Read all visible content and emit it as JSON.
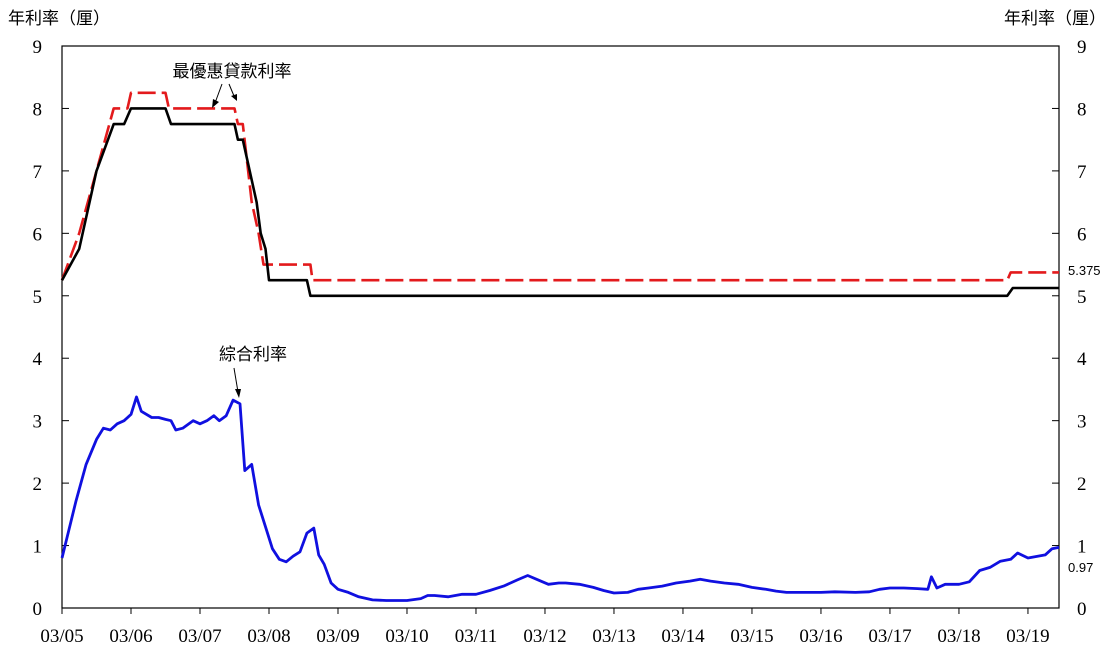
{
  "chart_data": {
    "type": "line",
    "y_unit_left": "年利率（厘）",
    "y_unit_right": "年利率（厘）",
    "ylim": [
      0,
      9
    ],
    "y_ticks": [
      "0",
      "1",
      "2",
      "3",
      "4",
      "5",
      "6",
      "7",
      "8",
      "9"
    ],
    "x_ticks": [
      "03/05",
      "03/06",
      "03/07",
      "03/08",
      "03/09",
      "03/10",
      "03/11",
      "03/12",
      "03/13",
      "03/14",
      "03/15",
      "03/16",
      "03/17",
      "03/18",
      "03/19"
    ],
    "grid": false,
    "annotations": {
      "prime": "最優惠貸款利率",
      "composite": "綜合利率"
    },
    "end_labels": {
      "prime_high": "5.375",
      "composite": "0.97"
    },
    "colors": {
      "prime_high": "#e31a1c",
      "prime_low": "#000000",
      "composite": "#1010e0"
    },
    "series": [
      {
        "key": "prime_high",
        "style": "dashed",
        "points": [
          [
            2005.0,
            5.25
          ],
          [
            2005.25,
            6.0
          ],
          [
            2005.5,
            7.0
          ],
          [
            2005.75,
            8.0
          ],
          [
            2005.95,
            8.0
          ],
          [
            2006.0,
            8.25
          ],
          [
            2006.5,
            8.25
          ],
          [
            2006.55,
            8.0
          ],
          [
            2007.0,
            8.0
          ],
          [
            2007.5,
            8.0
          ],
          [
            2007.55,
            7.75
          ],
          [
            2007.62,
            7.75
          ],
          [
            2007.75,
            6.5
          ],
          [
            2007.85,
            6.0
          ],
          [
            2007.92,
            5.5
          ],
          [
            2008.5,
            5.5
          ],
          [
            2008.6,
            5.5
          ],
          [
            2008.63,
            5.25
          ],
          [
            2018.7,
            5.25
          ],
          [
            2018.75,
            5.375
          ],
          [
            2019.45,
            5.375
          ]
        ]
      },
      {
        "key": "prime_low",
        "style": "solid",
        "points": [
          [
            2005.0,
            5.25
          ],
          [
            2005.25,
            5.75
          ],
          [
            2005.5,
            7.0
          ],
          [
            2005.75,
            7.75
          ],
          [
            2005.9,
            7.75
          ],
          [
            2006.0,
            8.0
          ],
          [
            2006.5,
            8.0
          ],
          [
            2006.58,
            7.75
          ],
          [
            2007.0,
            7.75
          ],
          [
            2007.5,
            7.75
          ],
          [
            2007.55,
            7.5
          ],
          [
            2007.62,
            7.5
          ],
          [
            2007.72,
            7.0
          ],
          [
            2007.82,
            6.5
          ],
          [
            2007.88,
            6.0
          ],
          [
            2007.95,
            5.75
          ],
          [
            2008.0,
            5.25
          ],
          [
            2008.55,
            5.25
          ],
          [
            2008.6,
            5.0
          ],
          [
            2018.7,
            5.0
          ],
          [
            2018.78,
            5.125
          ],
          [
            2019.45,
            5.125
          ]
        ]
      },
      {
        "key": "composite",
        "style": "solid",
        "points": [
          [
            2005.0,
            0.8
          ],
          [
            2005.1,
            1.25
          ],
          [
            2005.2,
            1.7
          ],
          [
            2005.35,
            2.3
          ],
          [
            2005.5,
            2.7
          ],
          [
            2005.6,
            2.88
          ],
          [
            2005.7,
            2.85
          ],
          [
            2005.8,
            2.95
          ],
          [
            2005.9,
            3.0
          ],
          [
            2006.0,
            3.1
          ],
          [
            2006.08,
            3.38
          ],
          [
            2006.15,
            3.15
          ],
          [
            2006.3,
            3.05
          ],
          [
            2006.4,
            3.05
          ],
          [
            2006.5,
            3.02
          ],
          [
            2006.58,
            3.0
          ],
          [
            2006.65,
            2.85
          ],
          [
            2006.75,
            2.88
          ],
          [
            2006.9,
            3.0
          ],
          [
            2007.0,
            2.95
          ],
          [
            2007.1,
            3.0
          ],
          [
            2007.2,
            3.08
          ],
          [
            2007.28,
            3.0
          ],
          [
            2007.38,
            3.08
          ],
          [
            2007.48,
            3.33
          ],
          [
            2007.58,
            3.27
          ],
          [
            2007.65,
            2.2
          ],
          [
            2007.75,
            2.3
          ],
          [
            2007.85,
            1.65
          ],
          [
            2007.95,
            1.3
          ],
          [
            2008.05,
            0.95
          ],
          [
            2008.15,
            0.78
          ],
          [
            2008.25,
            0.74
          ],
          [
            2008.35,
            0.83
          ],
          [
            2008.45,
            0.9
          ],
          [
            2008.55,
            1.2
          ],
          [
            2008.65,
            1.28
          ],
          [
            2008.72,
            0.85
          ],
          [
            2008.8,
            0.7
          ],
          [
            2008.9,
            0.4
          ],
          [
            2009.0,
            0.3
          ],
          [
            2009.15,
            0.25
          ],
          [
            2009.3,
            0.18
          ],
          [
            2009.5,
            0.13
          ],
          [
            2009.7,
            0.12
          ],
          [
            2010.0,
            0.12
          ],
          [
            2010.2,
            0.15
          ],
          [
            2010.3,
            0.2
          ],
          [
            2010.4,
            0.2
          ],
          [
            2010.6,
            0.18
          ],
          [
            2010.8,
            0.22
          ],
          [
            2011.0,
            0.22
          ],
          [
            2011.2,
            0.28
          ],
          [
            2011.4,
            0.35
          ],
          [
            2011.6,
            0.45
          ],
          [
            2011.75,
            0.52
          ],
          [
            2011.9,
            0.45
          ],
          [
            2012.05,
            0.38
          ],
          [
            2012.2,
            0.4
          ],
          [
            2012.3,
            0.4
          ],
          [
            2012.5,
            0.38
          ],
          [
            2012.7,
            0.33
          ],
          [
            2012.85,
            0.28
          ],
          [
            2013.0,
            0.24
          ],
          [
            2013.2,
            0.25
          ],
          [
            2013.35,
            0.3
          ],
          [
            2013.5,
            0.32
          ],
          [
            2013.7,
            0.35
          ],
          [
            2013.9,
            0.4
          ],
          [
            2014.1,
            0.43
          ],
          [
            2014.25,
            0.46
          ],
          [
            2014.4,
            0.43
          ],
          [
            2014.6,
            0.4
          ],
          [
            2014.8,
            0.38
          ],
          [
            2015.0,
            0.33
          ],
          [
            2015.2,
            0.3
          ],
          [
            2015.35,
            0.27
          ],
          [
            2015.5,
            0.25
          ],
          [
            2015.8,
            0.25
          ],
          [
            2016.0,
            0.25
          ],
          [
            2016.2,
            0.26
          ],
          [
            2016.5,
            0.25
          ],
          [
            2016.7,
            0.26
          ],
          [
            2016.85,
            0.3
          ],
          [
            2017.0,
            0.32
          ],
          [
            2017.2,
            0.32
          ],
          [
            2017.4,
            0.31
          ],
          [
            2017.55,
            0.3
          ],
          [
            2017.6,
            0.5
          ],
          [
            2017.68,
            0.32
          ],
          [
            2017.8,
            0.38
          ],
          [
            2018.0,
            0.38
          ],
          [
            2018.15,
            0.42
          ],
          [
            2018.3,
            0.6
          ],
          [
            2018.45,
            0.65
          ],
          [
            2018.6,
            0.75
          ],
          [
            2018.75,
            0.78
          ],
          [
            2018.85,
            0.88
          ],
          [
            2019.0,
            0.8
          ],
          [
            2019.1,
            0.82
          ],
          [
            2019.25,
            0.85
          ],
          [
            2019.35,
            0.95
          ],
          [
            2019.45,
            0.97
          ]
        ]
      }
    ]
  }
}
